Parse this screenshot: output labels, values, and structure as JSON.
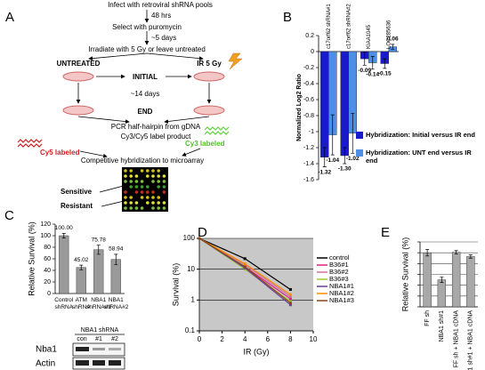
{
  "panels": [
    "A",
    "B",
    "C",
    "D",
    "E"
  ],
  "diagram": {
    "steps": [
      "Infect with retroviral shRNA pools",
      "48 hrs",
      "Select with puromycin",
      "~5 days",
      "Irradiate with 5 Gy or leave untreated"
    ],
    "untreated": "UNTREATED",
    "initial": "INITIAL",
    "ir": "IR 5 Gy",
    "days14": "~14 days",
    "end": "END",
    "pcr": "PCR half-hairpin from gDNA",
    "label_product": "Cy3/Cy5 label product",
    "cy5": "Cy5 labeled",
    "cy3": "Cy3 labeled",
    "hybridization": "Competitive hybridization to microarray",
    "sensitive": "Sensitive",
    "resistant": "Resistant"
  },
  "blot": {
    "title": "NBA1 shRNA",
    "lanes": [
      "con",
      "#1",
      "#2"
    ],
    "rows": [
      "Nba1",
      "Actin"
    ]
  },
  "chart_data": [
    {
      "type": "bar",
      "ylabel": "Normalized Log2 Ratio",
      "categories": [
        "c17orf62 shRNA#1",
        "c17orf62 shRNA#2",
        "KIAA1045",
        "LOC285636"
      ],
      "series": [
        {
          "name": "Hybridization: Initial versus IR end",
          "color": "#1a1acd",
          "values": [
            -1.32,
            -1.3,
            -0.09,
            -0.15
          ],
          "errors": [
            0.12,
            0.1,
            0.08,
            0.06
          ],
          "value_labels": [
            "-1.32",
            "-1.30",
            "-0.09",
            "-0.15"
          ]
        },
        {
          "name": "Hybridization: UNT end versus IR end",
          "color": "#4d8fe6",
          "values": [
            -1.04,
            -1.02,
            -0.14,
            0.06
          ],
          "errors": [
            0.25,
            0.25,
            0.08,
            0.03
          ],
          "value_labels": [
            "-1.04",
            "-1.02",
            "-0.14",
            "0.06"
          ]
        }
      ],
      "ylim": [
        -1.6,
        0.2
      ],
      "yticks": [
        0.2,
        0,
        -0.2,
        -0.4,
        -0.6,
        -0.8,
        -1,
        -1.2,
        -1.4,
        -1.6
      ],
      "grid": false
    },
    {
      "type": "bar",
      "ylabel": "Relative Survival (%)",
      "categories": [
        "Control shRNA",
        "ATM shRNA",
        "NBA1 shRNA#1",
        "NBA1 shRNA#2"
      ],
      "values": [
        100,
        45.02,
        75.78,
        58.94
      ],
      "errors": [
        4,
        4,
        8,
        9
      ],
      "value_labels": [
        "100.00",
        "45.02",
        "75.78",
        "58.94"
      ],
      "color": "#9a9a9a",
      "ylim": [
        0,
        120
      ],
      "yticks": [
        0,
        20,
        40,
        60,
        80,
        100,
        120
      ],
      "grid": false
    },
    {
      "type": "line",
      "xlabel": "IR (Gy)",
      "ylabel": "Survival (%)",
      "x": [
        0,
        4,
        8
      ],
      "series": [
        {
          "name": "control",
          "color": "#000000",
          "values": [
            100,
            22,
            2.2
          ]
        },
        {
          "name": "B36#1",
          "color": "#e0218a",
          "values": [
            100,
            12,
            1.1
          ]
        },
        {
          "name": "B36#2",
          "color": "#d070a0",
          "values": [
            100,
            14,
            1.3
          ]
        },
        {
          "name": "B36#3",
          "color": "#9acd32",
          "values": [
            100,
            10,
            0.9
          ]
        },
        {
          "name": "NBA1#1",
          "color": "#6a3d9a",
          "values": [
            100,
            11,
            0.7
          ]
        },
        {
          "name": "NBA1#2",
          "color": "#ff8c00",
          "values": [
            100,
            15,
            1.5
          ]
        },
        {
          "name": "NBA1#3",
          "color": "#8b4513",
          "values": [
            100,
            12,
            0.8
          ]
        }
      ],
      "xlim": [
        0,
        10
      ],
      "xticks": [
        0,
        2,
        4,
        6,
        8,
        10
      ],
      "ylim": [
        0.1,
        100
      ],
      "yticks": [
        0.1,
        1,
        10,
        100
      ],
      "log_y": true,
      "grid": true,
      "background": "#c8c8c8"
    },
    {
      "type": "bar",
      "ylabel": "Relative Survival (%)",
      "categories": [
        "FF sh",
        "NBA1 sh#1",
        "FF sh + NBA1 cDNA",
        "NBA1 sh#1 + NBA1 cDNA"
      ],
      "values": [
        100,
        50,
        101,
        93
      ],
      "errors": [
        6,
        5,
        3,
        3
      ],
      "color": "#a8a8a8",
      "ylim": [
        0,
        120
      ],
      "yticks": [
        0,
        20,
        40,
        60,
        80,
        100,
        120
      ],
      "ytick_labels": false,
      "grid": true
    }
  ]
}
